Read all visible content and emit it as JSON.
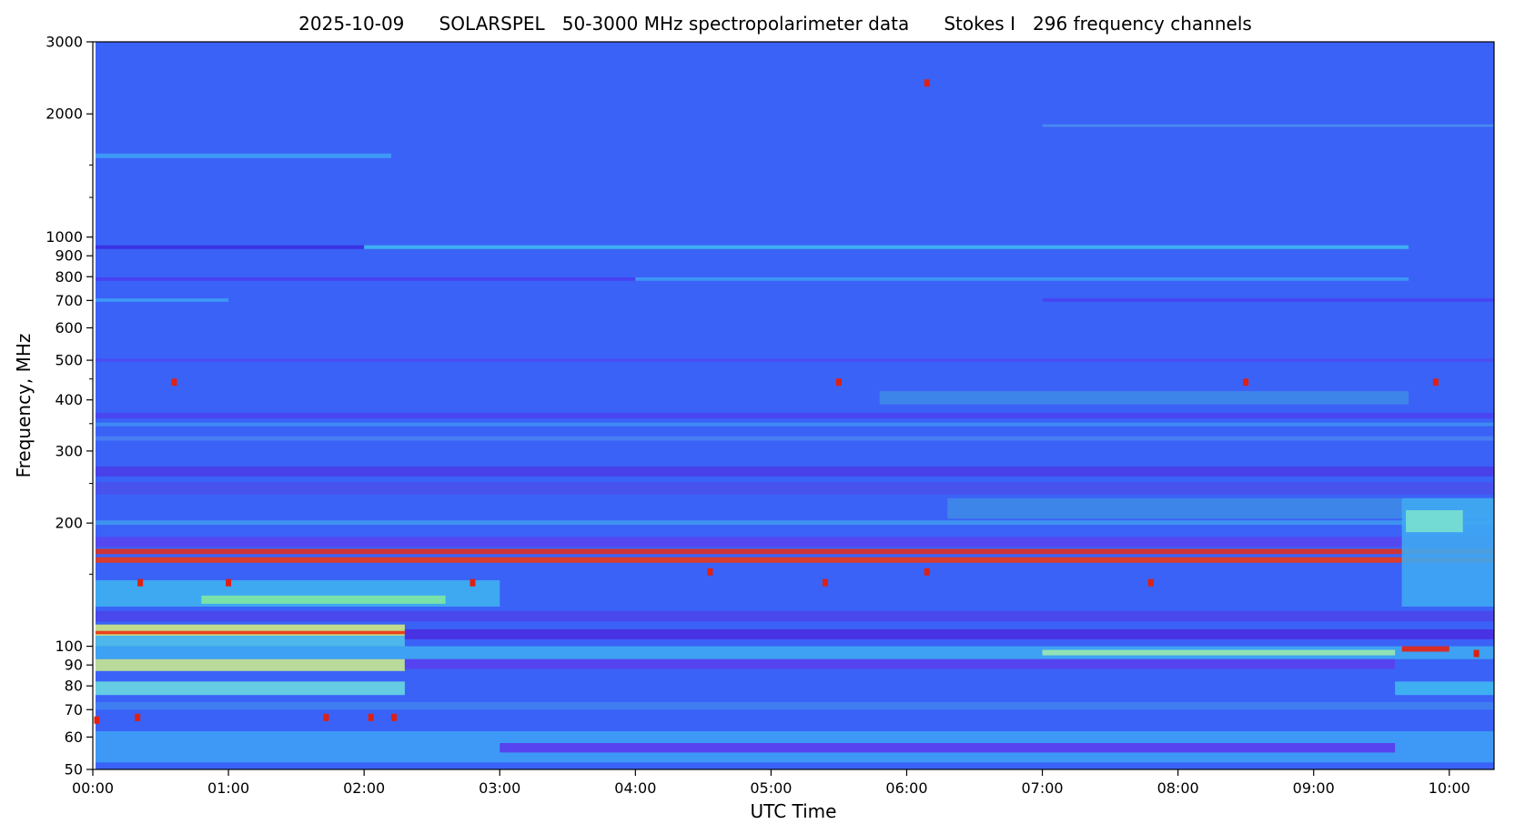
{
  "chart_data": {
    "type": "heatmap",
    "title": "2025-10-09      SOLARSPEL   50-3000 MHz spectropolarimeter data      Stokes I   296 frequency channels",
    "xlabel": "UTC Time",
    "ylabel": "Frequency, MHz",
    "y_scale": "log",
    "ylim": [
      50,
      3000
    ],
    "xlim_hours": [
      0,
      10.33
    ],
    "x_ticks": [
      {
        "label": "00:00",
        "hour": 0
      },
      {
        "label": "01:00",
        "hour": 1
      },
      {
        "label": "02:00",
        "hour": 2
      },
      {
        "label": "03:00",
        "hour": 3
      },
      {
        "label": "04:00",
        "hour": 4
      },
      {
        "label": "05:00",
        "hour": 5
      },
      {
        "label": "06:00",
        "hour": 6
      },
      {
        "label": "07:00",
        "hour": 7
      },
      {
        "label": "08:00",
        "hour": 8
      },
      {
        "label": "09:00",
        "hour": 9
      },
      {
        "label": "10:00",
        "hour": 10
      }
    ],
    "y_ticks": [
      {
        "label": "3000",
        "value": 3000
      },
      {
        "label": "2000",
        "value": 2000
      },
      {
        "label": "1000",
        "value": 1000
      },
      {
        "label": "900",
        "value": 900
      },
      {
        "label": "800",
        "value": 800
      },
      {
        "label": "700",
        "value": 700
      },
      {
        "label": "600",
        "value": 600
      },
      {
        "label": "500",
        "value": 500
      },
      {
        "label": "400",
        "value": 400
      },
      {
        "label": "300",
        "value": 300
      },
      {
        "label": "200",
        "value": 200
      },
      {
        "label": "100",
        "value": 100
      },
      {
        "label": "90",
        "value": 90
      },
      {
        "label": "80",
        "value": 80
      },
      {
        "label": "70",
        "value": 70
      },
      {
        "label": "60",
        "value": 60
      },
      {
        "label": "50",
        "value": 50
      }
    ],
    "y_minor_ticks": [
      1500,
      1250,
      450,
      350,
      250,
      150
    ],
    "data_start_hour": 0.02,
    "background_color": "#3b62f7",
    "bands": [
      {
        "f_lo": 1560,
        "f_hi": 1600,
        "t0": 0.0,
        "t1": 2.2,
        "color": "#3fa0f5"
      },
      {
        "f_lo": 1860,
        "f_hi": 1885,
        "t0": 7.0,
        "t1": 10.33,
        "color": "#4a90f0"
      },
      {
        "f_lo": 935,
        "f_hi": 955,
        "t0": 0.0,
        "t1": 2.0,
        "color": "#3a2fe0"
      },
      {
        "f_lo": 935,
        "f_hi": 955,
        "t0": 2.0,
        "t1": 9.7,
        "color": "#40b8f0"
      },
      {
        "f_lo": 782,
        "f_hi": 797,
        "t0": 0.0,
        "t1": 4.0,
        "color": "#4a3ef0"
      },
      {
        "f_lo": 782,
        "f_hi": 797,
        "t0": 4.0,
        "t1": 9.7,
        "color": "#3e9cf2"
      },
      {
        "f_lo": 695,
        "f_hi": 708,
        "t0": 0.0,
        "t1": 1.0,
        "color": "#3fa0f5"
      },
      {
        "f_lo": 695,
        "f_hi": 708,
        "t0": 7.0,
        "t1": 10.33,
        "color": "#4a40f0"
      },
      {
        "f_lo": 495,
        "f_hi": 505,
        "t0": 0.0,
        "t1": 10.33,
        "color": "#4a4cf2"
      },
      {
        "f_lo": 360,
        "f_hi": 372,
        "t0": 0.0,
        "t1": 10.33,
        "color": "#4a44ef"
      },
      {
        "f_lo": 345,
        "f_hi": 352,
        "t0": 0.0,
        "t1": 10.33,
        "color": "#3f8ff2"
      },
      {
        "f_lo": 318,
        "f_hi": 326,
        "t0": 0.0,
        "t1": 10.33,
        "color": "#4a82f2"
      },
      {
        "f_lo": 390,
        "f_hi": 420,
        "t0": 5.8,
        "t1": 9.7,
        "color": "#3f8ae8"
      },
      {
        "f_lo": 260,
        "f_hi": 275,
        "t0": 0.0,
        "t1": 10.33,
        "color": "#4a3ee8"
      },
      {
        "f_lo": 235,
        "f_hi": 252,
        "t0": 0.0,
        "t1": 10.33,
        "color": "#4a52ec"
      },
      {
        "f_lo": 205,
        "f_hi": 230,
        "t0": 6.3,
        "t1": 10.33,
        "color": "#3f8ae8"
      },
      {
        "f_lo": 198,
        "f_hi": 203,
        "t0": 0.0,
        "t1": 10.33,
        "color": "#4098ee"
      },
      {
        "f_lo": 175,
        "f_hi": 185,
        "t0": 0.0,
        "t1": 10.33,
        "color": "#5a46f0"
      },
      {
        "f_lo": 168,
        "f_hi": 173,
        "t0": 0.0,
        "t1": 10.33,
        "color": "#e03020"
      },
      {
        "f_lo": 160,
        "f_hi": 165,
        "t0": 0.0,
        "t1": 10.33,
        "color": "#e83818"
      },
      {
        "f_lo": 125,
        "f_hi": 145,
        "t0": 0.0,
        "t1": 3.0,
        "color": "#3fb0f0"
      },
      {
        "f_lo": 127,
        "f_hi": 133,
        "t0": 0.8,
        "t1": 2.6,
        "color": "#7fe8a0"
      },
      {
        "f_lo": 115,
        "f_hi": 122,
        "t0": 0.0,
        "t1": 10.33,
        "color": "#4a46ea"
      },
      {
        "f_lo": 106,
        "f_hi": 113,
        "t0": 0.0,
        "t1": 2.3,
        "color": "#d0e880"
      },
      {
        "f_lo": 107,
        "f_hi": 109,
        "t0": 0.0,
        "t1": 2.3,
        "color": "#f03010"
      },
      {
        "f_lo": 100,
        "f_hi": 106,
        "t0": 0.0,
        "t1": 2.3,
        "color": "#50c0e8"
      },
      {
        "f_lo": 104,
        "f_hi": 110,
        "t0": 2.3,
        "t1": 10.33,
        "color": "#4a2ee0"
      },
      {
        "f_lo": 93,
        "f_hi": 100,
        "t0": 0.0,
        "t1": 10.33,
        "color": "#3fa8f2"
      },
      {
        "f_lo": 95,
        "f_hi": 98,
        "t0": 7.0,
        "t1": 9.6,
        "color": "#9ae8b0"
      },
      {
        "f_lo": 97,
        "f_hi": 100,
        "t0": 9.65,
        "t1": 10.0,
        "color": "#e82010"
      },
      {
        "f_lo": 87,
        "f_hi": 93,
        "t0": 0.0,
        "t1": 2.3,
        "color": "#c8e890"
      },
      {
        "f_lo": 88,
        "f_hi": 93,
        "t0": 2.3,
        "t1": 9.6,
        "color": "#5a40ee"
      },
      {
        "f_lo": 76,
        "f_hi": 82,
        "t0": 0.0,
        "t1": 2.3,
        "color": "#6ad8e0"
      },
      {
        "f_lo": 76,
        "f_hi": 82,
        "t0": 9.6,
        "t1": 10.33,
        "color": "#3fb8f0"
      },
      {
        "f_lo": 70,
        "f_hi": 73,
        "t0": 0.0,
        "t1": 10.33,
        "color": "#3f82f0"
      },
      {
        "f_lo": 52,
        "f_hi": 62,
        "t0": 0.0,
        "t1": 10.33,
        "color": "#3fa0f5"
      },
      {
        "f_lo": 55,
        "f_hi": 58,
        "t0": 3.0,
        "t1": 9.6,
        "color": "#5a3aee"
      },
      {
        "f_lo": 125,
        "f_hi": 230,
        "t0": 9.65,
        "t1": 10.33,
        "color": "#3fa8f2"
      },
      {
        "f_lo": 190,
        "f_hi": 215,
        "t0": 9.68,
        "t1": 10.1,
        "color": "#7ae0d0"
      }
    ],
    "hotspots": [
      {
        "f": 66,
        "t": 0.03,
        "color": "#e02010"
      },
      {
        "f": 67,
        "t": 0.33,
        "color": "#e02010"
      },
      {
        "f": 67,
        "t": 1.72,
        "color": "#e02010"
      },
      {
        "f": 67,
        "t": 2.05,
        "color": "#e02010"
      },
      {
        "f": 67,
        "t": 2.22,
        "color": "#e02010"
      },
      {
        "f": 143,
        "t": 0.35,
        "color": "#e02010"
      },
      {
        "f": 143,
        "t": 1.0,
        "color": "#e02010"
      },
      {
        "f": 143,
        "t": 2.8,
        "color": "#e02010"
      },
      {
        "f": 143,
        "t": 5.4,
        "color": "#e02010"
      },
      {
        "f": 143,
        "t": 7.8,
        "color": "#e02010"
      },
      {
        "f": 152,
        "t": 4.55,
        "color": "#e02010"
      },
      {
        "f": 152,
        "t": 6.15,
        "color": "#e02010"
      },
      {
        "f": 442,
        "t": 0.6,
        "color": "#e02010"
      },
      {
        "f": 442,
        "t": 5.5,
        "color": "#e02010"
      },
      {
        "f": 442,
        "t": 8.5,
        "color": "#e02010"
      },
      {
        "f": 442,
        "t": 9.9,
        "color": "#e02010"
      },
      {
        "f": 96,
        "t": 10.2,
        "color": "#e02010"
      },
      {
        "f": 2380,
        "t": 6.15,
        "color": "#e02010"
      }
    ]
  }
}
